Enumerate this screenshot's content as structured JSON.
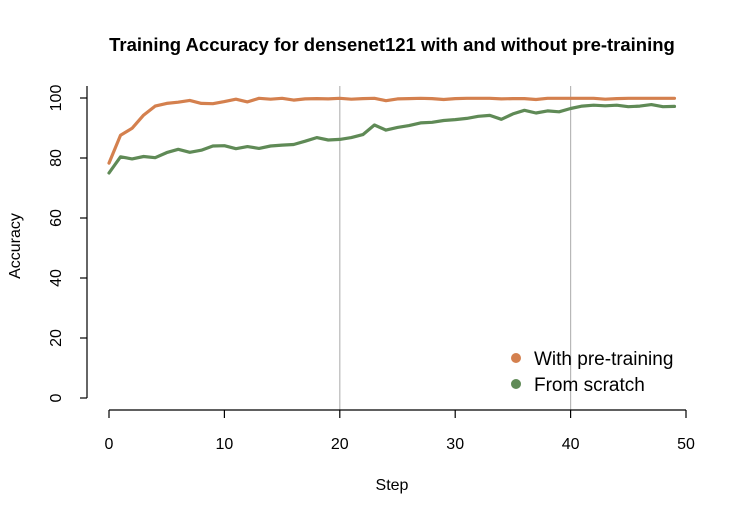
{
  "chart_data": {
    "type": "line",
    "title": "Training Accuracy for densenet121 with and without pre-training",
    "xlabel": "Step",
    "ylabel": "Accuracy",
    "xlim": [
      0,
      50
    ],
    "ylim": [
      0,
      100
    ],
    "xticks": [
      0,
      10,
      20,
      30,
      40,
      50
    ],
    "yticks": [
      0,
      20,
      40,
      60,
      80,
      100
    ],
    "vlines": [
      20,
      40
    ],
    "legend_position": "bottom-right",
    "x": [
      0,
      1,
      2,
      3,
      4,
      5,
      6,
      7,
      8,
      9,
      10,
      11,
      12,
      13,
      14,
      15,
      16,
      17,
      18,
      19,
      20,
      21,
      22,
      23,
      24,
      25,
      26,
      27,
      28,
      29,
      30,
      31,
      32,
      33,
      34,
      35,
      36,
      37,
      38,
      39,
      40,
      41,
      42,
      43,
      44,
      45,
      46,
      47,
      48,
      49
    ],
    "series": [
      {
        "name": "With pre-training",
        "color": "#d4804e",
        "values": [
          78.3,
          87.6,
          89.9,
          94.3,
          97.3,
          98.2,
          98.6,
          99.2,
          98.2,
          98.1,
          98.8,
          99.6,
          98.7,
          99.9,
          99.6,
          99.9,
          99.3,
          99.7,
          99.8,
          99.7,
          99.9,
          99.6,
          99.8,
          99.9,
          99.1,
          99.7,
          99.8,
          99.9,
          99.8,
          99.5,
          99.8,
          99.9,
          99.9,
          99.9,
          99.7,
          99.8,
          99.8,
          99.5,
          99.9,
          99.9,
          99.9,
          99.9,
          99.9,
          99.6,
          99.8,
          99.9,
          99.9,
          99.9,
          99.9,
          99.9
        ]
      },
      {
        "name": "From scratch",
        "color": "#5f8a56",
        "values": [
          75.0,
          80.4,
          79.7,
          80.5,
          80.1,
          81.8,
          82.9,
          81.9,
          82.6,
          84.0,
          84.1,
          83.1,
          83.8,
          83.2,
          84.0,
          84.3,
          84.5,
          85.6,
          86.8,
          86.0,
          86.2,
          86.8,
          87.8,
          91.0,
          89.3,
          90.2,
          90.8,
          91.7,
          91.9,
          92.5,
          92.8,
          93.2,
          93.9,
          94.2,
          92.9,
          94.7,
          95.9,
          95.0,
          95.7,
          95.4,
          96.5,
          97.3,
          97.6,
          97.4,
          97.6,
          97.1,
          97.3,
          97.8,
          97.1,
          97.2
        ]
      }
    ]
  }
}
